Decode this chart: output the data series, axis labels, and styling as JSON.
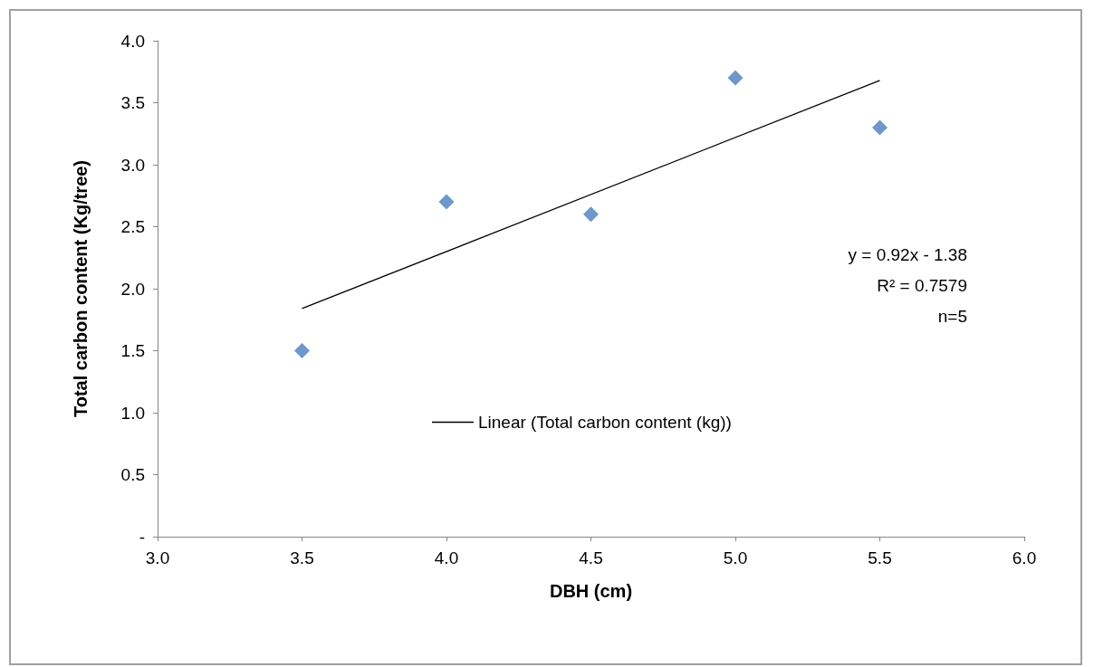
{
  "chart_data": {
    "type": "scatter",
    "xlabel": "DBH (cm)",
    "ylabel": "Total carbon content (Kg/tree)",
    "xlim": [
      3.0,
      6.0
    ],
    "xticks": [
      {
        "value": 3,
        "label": "3.0"
      },
      {
        "value": 3.5,
        "label": "3.5"
      },
      {
        "value": 4,
        "label": "4.0"
      },
      {
        "value": 4.5,
        "label": "4.5"
      },
      {
        "value": 5,
        "label": "5.0"
      },
      {
        "value": 5.5,
        "label": "5.5"
      },
      {
        "value": 6,
        "label": "6.0"
      }
    ],
    "ylim": [
      0,
      4.0
    ],
    "yticks": [
      {
        "value": 0,
        "label": "-"
      },
      {
        "value": 0.5,
        "label": "0.5"
      },
      {
        "value": 1,
        "label": "1.0"
      },
      {
        "value": 1.5,
        "label": "1.5"
      },
      {
        "value": 2,
        "label": "2.0"
      },
      {
        "value": 2.5,
        "label": "2.5"
      },
      {
        "value": 3,
        "label": "3.0"
      },
      {
        "value": 3.5,
        "label": "3.5"
      },
      {
        "value": 4,
        "label": "4.0"
      }
    ],
    "marker": "diamond",
    "grid": false,
    "legend": "center",
    "series": [
      {
        "color": "#4a7ebb",
        "x": [
          3.5,
          4.0,
          4.5,
          5.0,
          5.5
        ],
        "values": [
          1.5,
          2.7,
          2.6,
          3.7,
          3.3
        ]
      },
      {
        "type": "line",
        "name": "Linear (Total carbon content (kg))",
        "color": "#000000",
        "marker": "none",
        "x": [
          3.5,
          5.5
        ],
        "values": [
          1.84,
          3.68
        ]
      }
    ],
    "annotations": [
      "y = 0.92x - 1.38",
      "R² = 0.7579",
      "n=5"
    ]
  }
}
